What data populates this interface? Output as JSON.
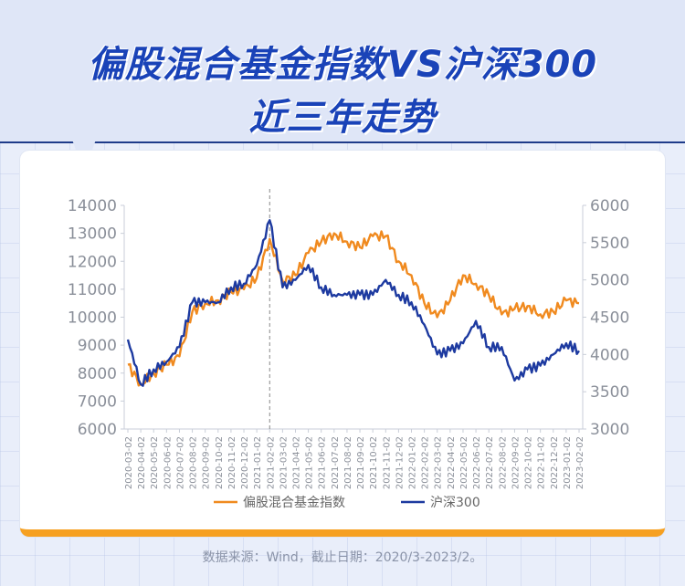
{
  "title_line1": "偏股混合基金指数VS沪深300",
  "title_line2": "近三年走势",
  "source_note": "数据来源：Wind，截止日期：2020/3-2023/2。",
  "colors": {
    "orange": "#f08a1f",
    "navy": "#1d3aa0",
    "accent": "#f6a021",
    "title": "#1a43b8"
  },
  "chart_data": {
    "type": "line",
    "title": "",
    "y_left_ticks": [
      6000,
      7000,
      8000,
      9000,
      10000,
      11000,
      12000,
      13000,
      14000
    ],
    "y_right_ticks": [
      3000,
      3500,
      4000,
      4500,
      5000,
      5500,
      6000
    ],
    "ylim_left": [
      6000,
      14000
    ],
    "ylim_right": [
      3000,
      6000
    ],
    "x_ticks": [
      "2020-03-02",
      "2020-04-02",
      "2020-05-02",
      "2020-06-02",
      "2020-07-02",
      "2020-08-02",
      "2020-09-02",
      "2020-10-02",
      "2020-11-02",
      "2020-12-02",
      "2021-01-02",
      "2021-02-02",
      "2021-03-02",
      "2021-04-02",
      "2021-05-02",
      "2021-06-02",
      "2021-07-02",
      "2021-08-02",
      "2021-09-02",
      "2021-10-02",
      "2021-11-02",
      "2021-12-02",
      "2022-01-02",
      "2022-02-02",
      "2022-03-02",
      "2022-04-02",
      "2022-05-02",
      "2022-06-02",
      "2022-07-02",
      "2022-08-02",
      "2022-09-02",
      "2022-10-02",
      "2022-11-02",
      "2022-12-02",
      "2023-01-02",
      "2023-02-02"
    ],
    "vline_at": "2021-02-02",
    "series": [
      {
        "name": "偏股混合基金指数",
        "axis": "left",
        "color": "#f08a1f",
        "values": [
          8300,
          7600,
          8000,
          8300,
          8600,
          10200,
          10500,
          10600,
          10900,
          11000,
          11400,
          12800,
          11300,
          11500,
          12300,
          12700,
          13000,
          12700,
          12500,
          12900,
          12900,
          12000,
          11500,
          10500,
          10000,
          10600,
          11500,
          11200,
          10800,
          10100,
          10300,
          10400,
          10100,
          10200,
          10600,
          10500
        ]
      },
      {
        "name": "沪深300",
        "axis": "right",
        "color": "#1d3aa0",
        "values": [
          4200,
          3600,
          3800,
          3900,
          4100,
          4700,
          4700,
          4700,
          4900,
          4950,
          5200,
          5800,
          4900,
          5000,
          5200,
          4900,
          4800,
          4800,
          4800,
          4800,
          5000,
          4800,
          4700,
          4400,
          4000,
          4050,
          4150,
          4450,
          4100,
          4100,
          3650,
          3800,
          3850,
          4000,
          4150,
          4050
        ]
      }
    ],
    "legend": {
      "placement": "bottom-center"
    },
    "xlabel": "",
    "ylabel": ""
  }
}
